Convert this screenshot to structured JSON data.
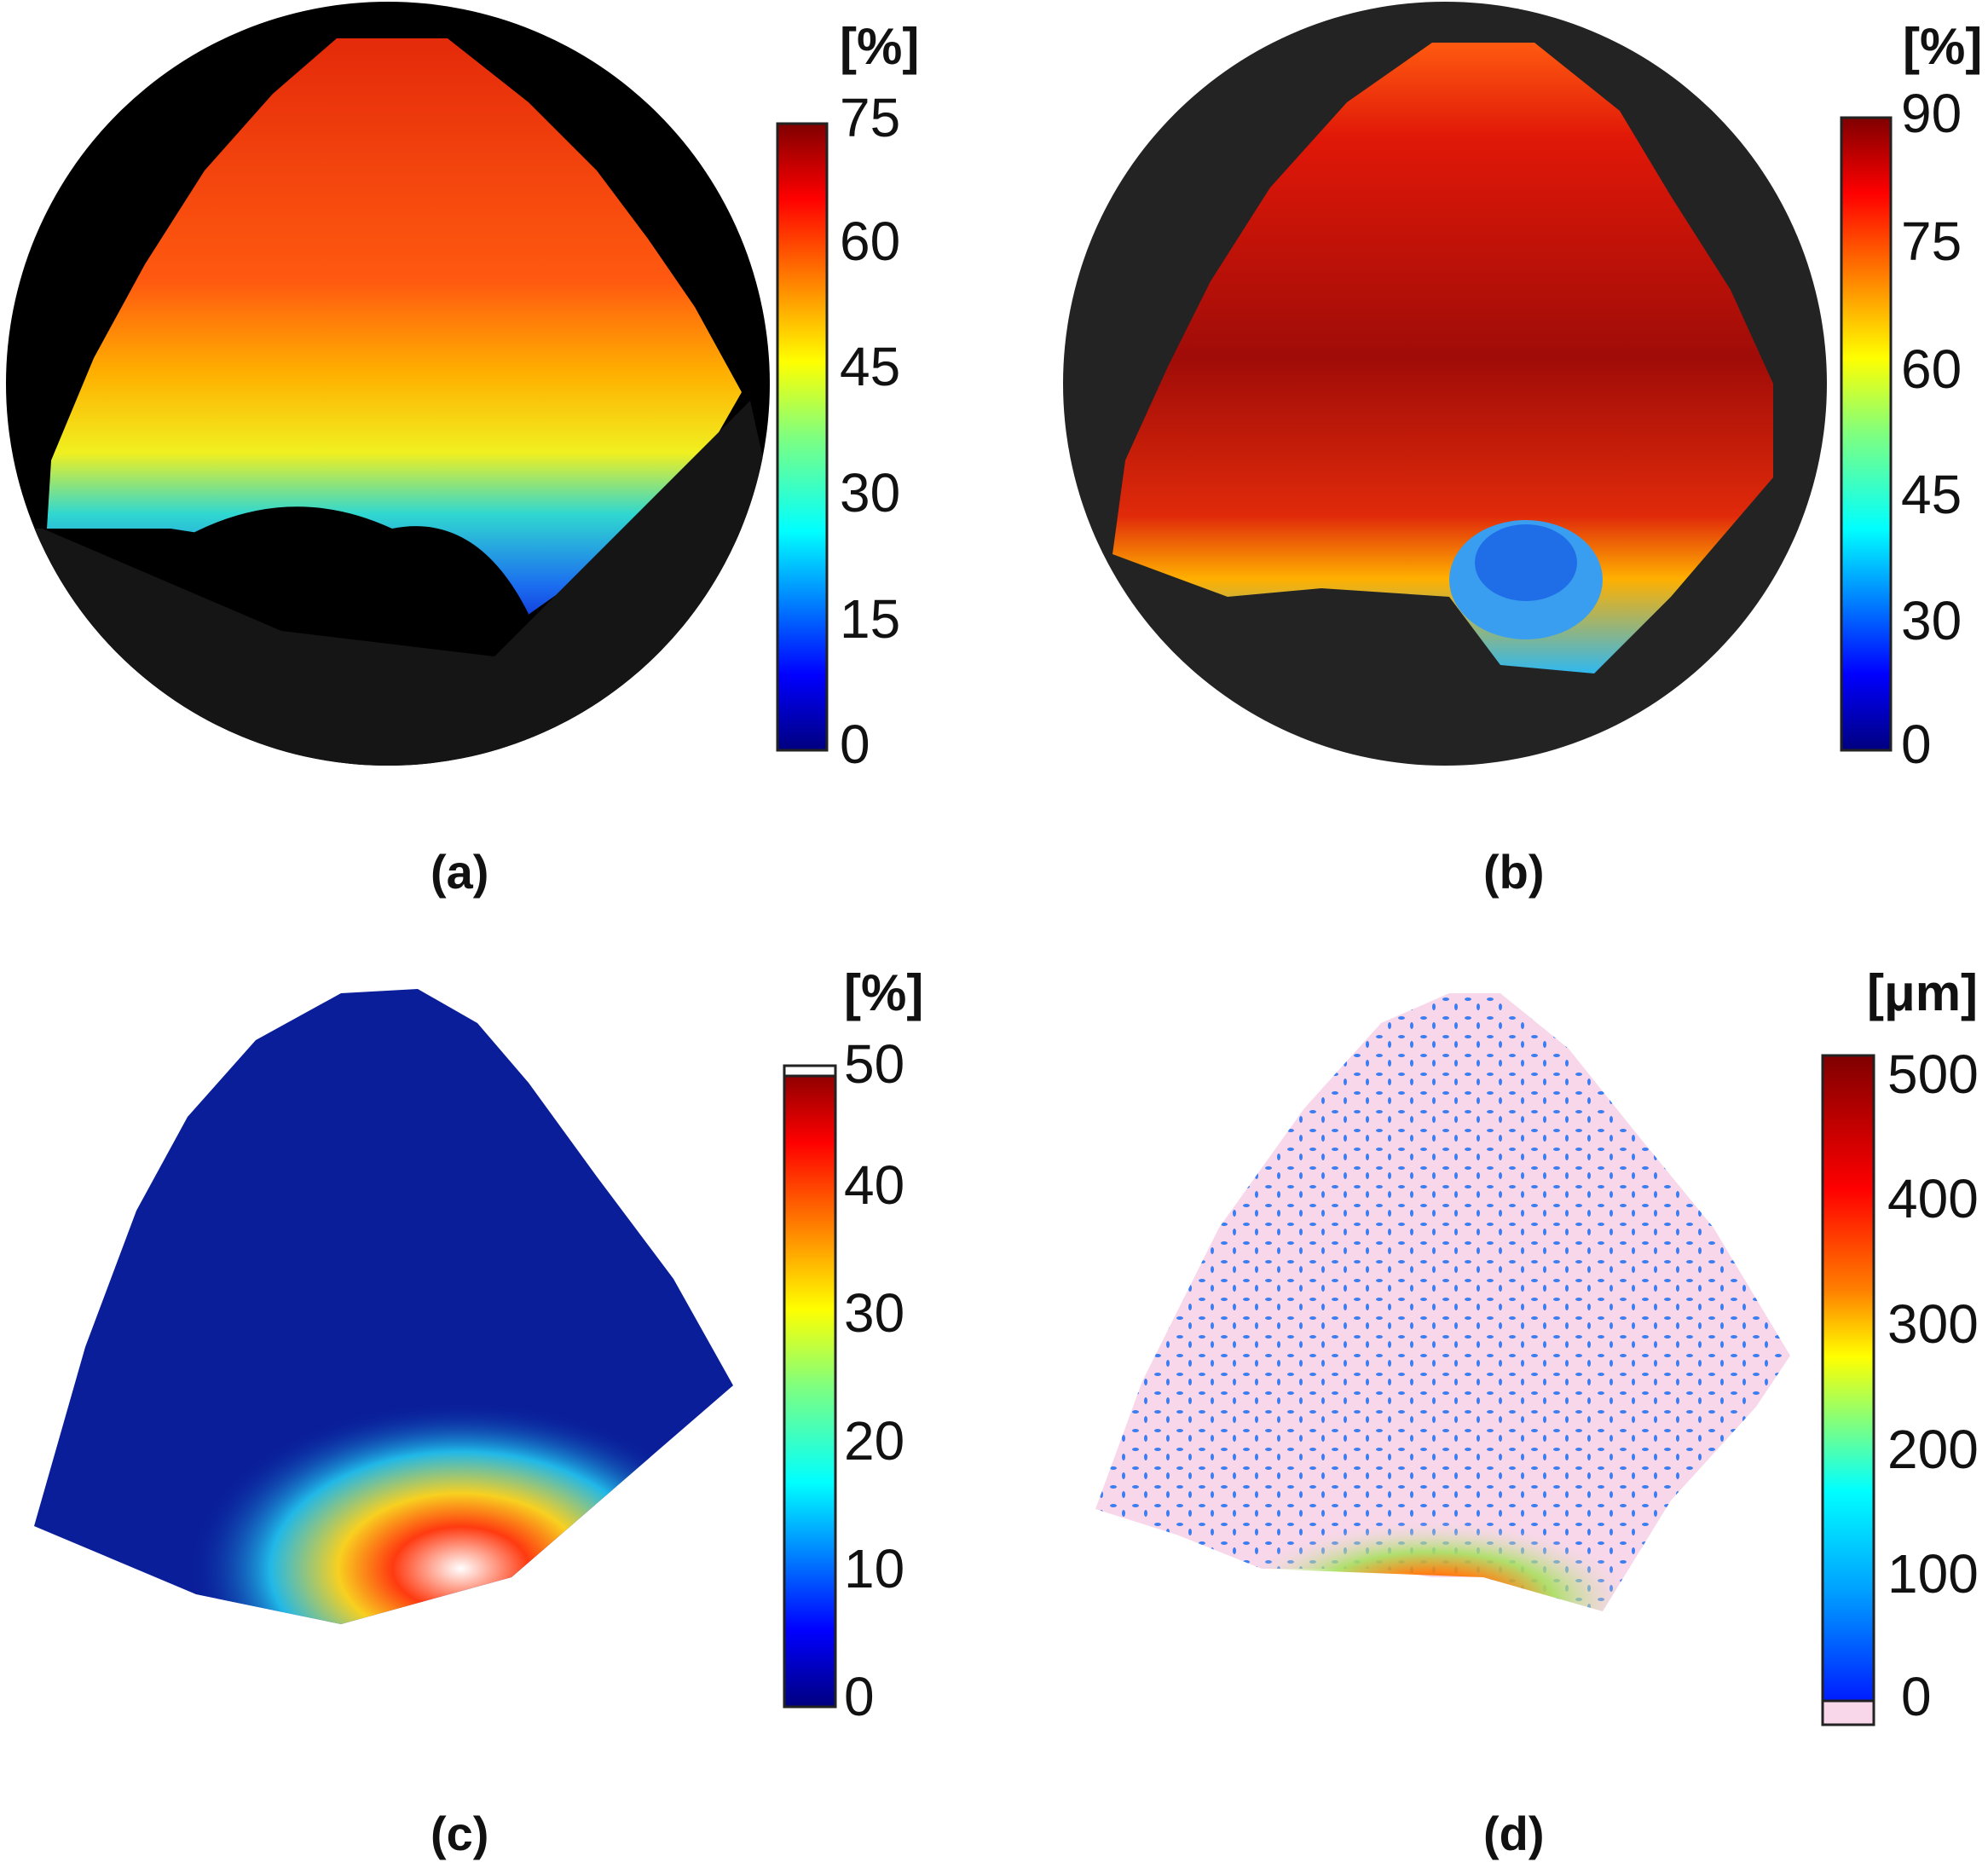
{
  "chart_data": [
    {
      "type": "heatmap",
      "panel_label": "(a)",
      "unit": "[%]",
      "colormap": "jet",
      "range": [
        0,
        75
      ],
      "ticks": [
        "0",
        "15",
        "30",
        "45",
        "60",
        "75"
      ],
      "tick_values": [
        0,
        15,
        30,
        45,
        60,
        75
      ],
      "background": "#000000",
      "description_of_gradient": "high values at top, decreasing toward bottom; minimum region near bottom centre"
    },
    {
      "type": "heatmap",
      "panel_label": "(b)",
      "unit": "[%]",
      "colormap": "jet",
      "range": [
        0,
        90
      ],
      "ticks": [
        "0",
        "30",
        "45",
        "60",
        "75",
        "90"
      ],
      "tick_values": [
        0,
        30,
        45,
        60,
        75,
        90
      ],
      "background": "#232323"
    },
    {
      "type": "heatmap",
      "panel_label": "(c)",
      "unit": "[%]",
      "colormap": "jet",
      "range": [
        0,
        50
      ],
      "ticks": [
        "0",
        "10",
        "20",
        "30",
        "40",
        "50"
      ],
      "tick_values": [
        0,
        10,
        20,
        30,
        40,
        50
      ],
      "background": "#ffffff"
    },
    {
      "type": "heatmap",
      "panel_label": "(d)",
      "unit": "[μm]",
      "colormap": "jet",
      "range": [
        0,
        500
      ],
      "ticks": [
        "0",
        "100",
        "200",
        "300",
        "400",
        "500"
      ],
      "tick_values": [
        0,
        100,
        200,
        300,
        400,
        500
      ],
      "background": "#f8d7ea"
    }
  ],
  "colors": {
    "jet_stops": [
      "#00007f",
      "#0000ff",
      "#007fff",
      "#00ffff",
      "#7fff7f",
      "#ffff00",
      "#ff7f00",
      "#ff0000",
      "#7f0000"
    ]
  }
}
